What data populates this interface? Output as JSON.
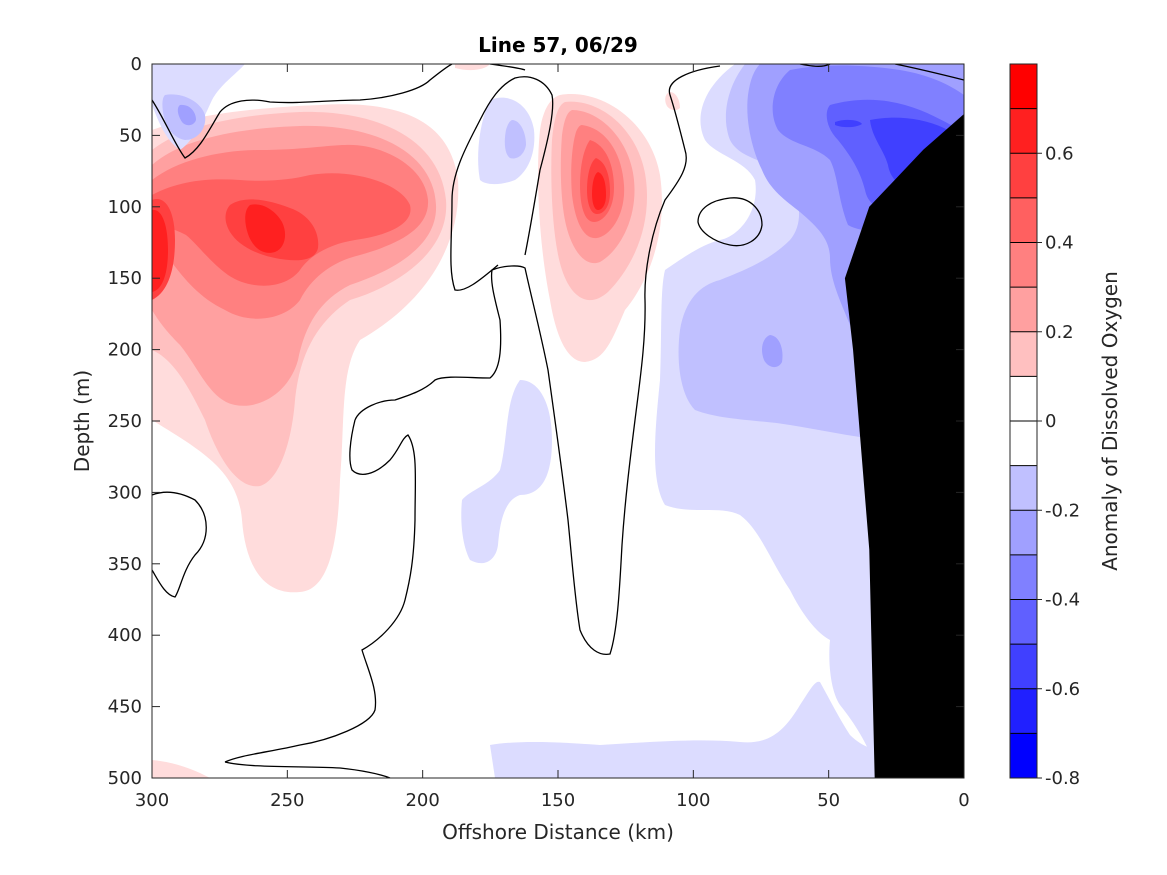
{
  "chart_data": {
    "type": "contour",
    "title": "Line 57, 06/29",
    "xlabel": "Offshore Distance (km)",
    "ylabel": "Depth (m)",
    "colorbar_label": "Anomaly of Dissolved Oxygen",
    "xlim": [
      300,
      0
    ],
    "ylim": [
      0,
      500
    ],
    "x_reversed": true,
    "y_reversed": true,
    "x_ticks": [
      "300",
      "250",
      "200",
      "150",
      "100",
      "50",
      "0"
    ],
    "y_ticks": [
      "0",
      "50",
      "100",
      "150",
      "200",
      "250",
      "300",
      "350",
      "400",
      "450",
      "500"
    ],
    "colorbar_range": [
      -0.8,
      0.8
    ],
    "colorbar_tick_values": [
      0.6,
      0.4,
      0.2,
      0,
      -0.2,
      -0.4,
      -0.6,
      -0.8
    ],
    "colorbar_tick_labels": [
      "0.6",
      "0.4",
      "0.2",
      "0",
      "-0.2",
      "-0.4",
      "-0.6",
      "-0.8"
    ],
    "levels": [
      -0.8,
      -0.7,
      -0.6,
      -0.5,
      -0.4,
      -0.3,
      -0.2,
      -0.1,
      0.1,
      0.2,
      0.3,
      0.4,
      0.5,
      0.6,
      0.7,
      0.8
    ],
    "level_colors": [
      "#0000ff",
      "#2020ff",
      "#4040ff",
      "#6060ff",
      "#8080ff",
      "#a0a0ff",
      "#c0c0ff",
      "#dcdcff",
      "#ffffff",
      "#ffdcdc",
      "#ffc0c0",
      "#ffa0a0",
      "#ff8080",
      "#ff6060",
      "#ff4040",
      "#ff2020",
      "#ff0000"
    ],
    "features": [
      {
        "sign": "positive",
        "x_km": 255,
        "depth_m": 115,
        "peak": 0.6
      },
      {
        "sign": "positive",
        "x_km": 298,
        "depth_m": 110,
        "peak": 0.6
      },
      {
        "sign": "positive",
        "x_km": 135,
        "depth_m": 90,
        "peak": 0.6
      },
      {
        "sign": "negative",
        "x_km": 20,
        "depth_m": 80,
        "peak": -0.6
      },
      {
        "sign": "negative",
        "x_km": 285,
        "depth_m": 35,
        "peak": -0.3
      },
      {
        "sign": "negative",
        "x_km": 165,
        "depth_m": 55,
        "peak": -0.2
      },
      {
        "sign": "negative",
        "x_km": 150,
        "depth_m": 300,
        "peak": -0.15
      },
      {
        "sign": "negative",
        "x_km": 60,
        "depth_m": 480,
        "peak": -0.15
      }
    ],
    "bathymetry_mask": [
      [
        33,
        500
      ],
      [
        35,
        340
      ],
      [
        41,
        200
      ],
      [
        44,
        150
      ],
      [
        35,
        100
      ],
      [
        15,
        60
      ],
      [
        0,
        35
      ],
      [
        0,
        500
      ]
    ],
    "mask_color": "#000000"
  }
}
